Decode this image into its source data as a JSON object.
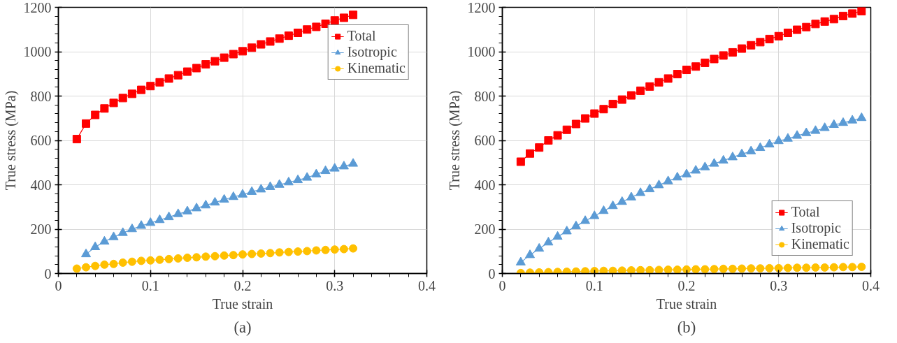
{
  "chart_data": [
    {
      "type": "line",
      "xlabel": "True strain",
      "ylabel": "True stress (MPa)",
      "annotations": [
        "(a)"
      ],
      "xlim": [
        0,
        0.4
      ],
      "xticks": [
        0,
        0.1,
        0.2,
        0.3,
        0.4
      ],
      "ylim": [
        0,
        1200
      ],
      "yticks": [
        0,
        200,
        400,
        600,
        800,
        1000,
        1200
      ],
      "grid": true,
      "legend": "top right",
      "x": [
        0.02,
        0.03,
        0.04,
        0.05,
        0.06,
        0.07,
        0.08,
        0.09,
        0.1,
        0.11,
        0.12,
        0.13,
        0.14,
        0.15,
        0.16,
        0.17,
        0.18,
        0.19,
        0.2,
        0.21,
        0.22,
        0.23,
        0.24,
        0.25,
        0.26,
        0.27,
        0.28,
        0.29,
        0.3,
        0.31,
        0.32
      ],
      "series": [
        {
          "name": "Total",
          "color": "#ff0000",
          "marker": "square",
          "values": [
            606,
            676,
            715,
            744,
            769,
            791,
            810,
            828,
            845,
            862,
            879,
            894,
            910,
            926,
            943,
            957,
            973,
            989,
            1002,
            1018,
            1033,
            1046,
            1059,
            1072,
            1085,
            1100,
            1112,
            1126,
            1141,
            1153,
            1166
          ]
        },
        {
          "name": "Isotropic",
          "color": "#5b9bd5",
          "marker": "triangle",
          "values": [
            null,
            87,
            119,
            144,
            164,
            183,
            200,
            215,
            228,
            241,
            254,
            268,
            280,
            294,
            307,
            320,
            333,
            345,
            356,
            368,
            379,
            390,
            400,
            411,
            421,
            432,
            447,
            462,
            473,
            483,
            495
          ]
        },
        {
          "name": "Kinematic",
          "color": "#ffc000",
          "marker": "circle",
          "values": [
            22,
            28,
            34,
            40,
            43,
            49,
            53,
            57,
            59,
            62,
            65,
            68,
            71,
            73,
            76,
            78,
            81,
            83,
            86,
            88,
            90,
            92,
            95,
            97,
            99,
            101,
            104,
            106,
            108,
            110,
            113
          ]
        }
      ]
    },
    {
      "type": "line",
      "xlabel": "True strain",
      "ylabel": "True stress (MPa)",
      "annotations": [
        "(b)"
      ],
      "xlim": [
        0,
        0.4
      ],
      "xticks": [
        0,
        0.1,
        0.2,
        0.3,
        0.4
      ],
      "ylim": [
        0,
        1200
      ],
      "yticks": [
        0,
        200,
        400,
        600,
        800,
        1000,
        1200
      ],
      "grid": true,
      "legend": "bottom right",
      "x": [
        0.02,
        0.03,
        0.04,
        0.05,
        0.06,
        0.07,
        0.08,
        0.09,
        0.1,
        0.11,
        0.12,
        0.13,
        0.14,
        0.15,
        0.16,
        0.17,
        0.18,
        0.19,
        0.2,
        0.21,
        0.22,
        0.23,
        0.24,
        0.25,
        0.26,
        0.27,
        0.28,
        0.29,
        0.3,
        0.31,
        0.32,
        0.33,
        0.34,
        0.35,
        0.36,
        0.37,
        0.38,
        0.39
      ],
      "series": [
        {
          "name": "Total",
          "color": "#ff0000",
          "marker": "square",
          "values": [
            504,
            541,
            568,
            600,
            623,
            648,
            674,
            699,
            721,
            741,
            764,
            784,
            803,
            824,
            843,
            862,
            879,
            899,
            918,
            933,
            950,
            967,
            983,
            997,
            1014,
            1029,
            1043,
            1057,
            1070,
            1085,
            1099,
            1111,
            1125,
            1136,
            1147,
            1161,
            1172,
            1183
          ]
        },
        {
          "name": "Isotropic",
          "color": "#5b9bd5",
          "marker": "triangle",
          "values": [
            50,
            83,
            112,
            140,
            166,
            190,
            213,
            237,
            259,
            282,
            304,
            323,
            343,
            363,
            380,
            398,
            416,
            433,
            447,
            464,
            479,
            495,
            509,
            524,
            538,
            551,
            566,
            582,
            597,
            608,
            621,
            633,
            643,
            656,
            670,
            679,
            690,
            701
          ]
        },
        {
          "name": "Kinematic",
          "color": "#ffc000",
          "marker": "circle",
          "values": [
            2,
            4,
            5,
            6,
            7,
            8,
            9,
            10,
            11,
            12,
            12,
            13,
            14,
            15,
            15,
            16,
            17,
            17,
            18,
            19,
            19,
            20,
            21,
            21,
            22,
            23,
            23,
            24,
            24,
            25,
            26,
            26,
            27,
            27,
            28,
            29,
            29,
            30
          ]
        }
      ]
    }
  ]
}
